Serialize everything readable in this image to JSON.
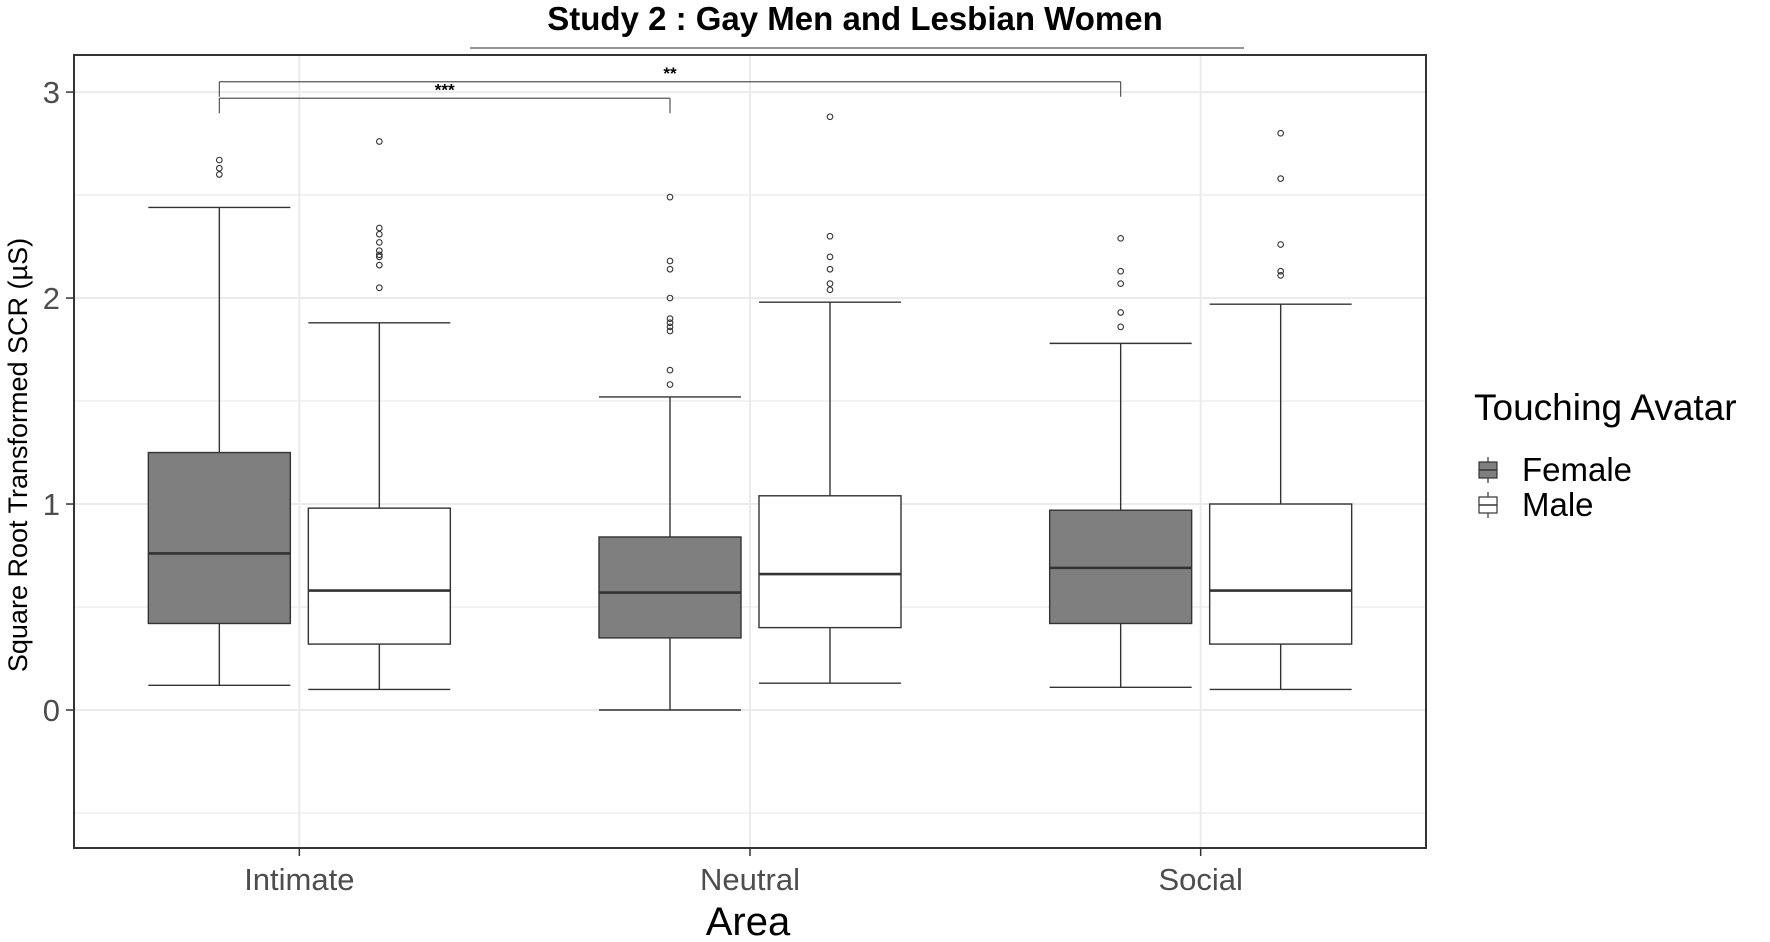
{
  "chart_data": {
    "type": "boxplot",
    "title": "Study 2 : Gay Men and Lesbian Women",
    "xlabel": "Area",
    "ylabel": "Square Root Transformed SCR (µS)",
    "categories": [
      "Intimate",
      "Neutral",
      "Social"
    ],
    "ylim": [
      -0.67,
      3.18
    ],
    "yticks": [
      0,
      1,
      2,
      3
    ],
    "grid": true,
    "legend": {
      "title": "Touching Avatar",
      "position": "right",
      "entries": [
        "Female",
        "Male"
      ]
    },
    "colors": {
      "female_fill": "#7f7f7f",
      "male_fill": "#ffffff",
      "box_stroke": "#333333",
      "grid": "#ebebeb",
      "panel_border": "#333333"
    },
    "series": [
      {
        "name": "Female",
        "boxes": [
          {
            "category": "Intimate",
            "min": 0.12,
            "q1": 0.42,
            "median": 0.76,
            "q3": 1.25,
            "max": 2.44,
            "outliers": [
              2.6,
              2.63,
              2.67
            ]
          },
          {
            "category": "Neutral",
            "min": 0.0,
            "q1": 0.35,
            "median": 0.57,
            "q3": 0.84,
            "max": 1.52,
            "outliers": [
              1.58,
              1.65,
              1.84,
              1.86,
              1.88,
              1.9,
              2.0,
              2.14,
              2.18,
              2.49
            ]
          },
          {
            "category": "Social",
            "min": 0.11,
            "q1": 0.42,
            "median": 0.69,
            "q3": 0.97,
            "max": 1.78,
            "outliers": [
              1.86,
              1.93,
              2.07,
              2.13,
              2.29
            ]
          }
        ]
      },
      {
        "name": "Male",
        "boxes": [
          {
            "category": "Intimate",
            "min": 0.1,
            "q1": 0.32,
            "median": 0.58,
            "q3": 0.98,
            "max": 1.88,
            "outliers": [
              2.05,
              2.16,
              2.2,
              2.21,
              2.23,
              2.27,
              2.31,
              2.34,
              2.76
            ]
          },
          {
            "category": "Neutral",
            "min": 0.13,
            "q1": 0.4,
            "median": 0.66,
            "q3": 1.04,
            "max": 1.98,
            "outliers": [
              2.04,
              2.07,
              2.14,
              2.2,
              2.3,
              2.88
            ]
          },
          {
            "category": "Social",
            "min": 0.1,
            "q1": 0.32,
            "median": 0.58,
            "q3": 1.0,
            "max": 1.97,
            "outliers": [
              2.11,
              2.13,
              2.26,
              2.58,
              2.8
            ]
          }
        ]
      }
    ],
    "significance": [
      {
        "label": "***",
        "from": "Intimate Female",
        "to": "Neutral Female",
        "level": 2.97
      },
      {
        "label": "**",
        "from": "Intimate Female",
        "to": "Social Female",
        "level": 3.05
      }
    ]
  }
}
